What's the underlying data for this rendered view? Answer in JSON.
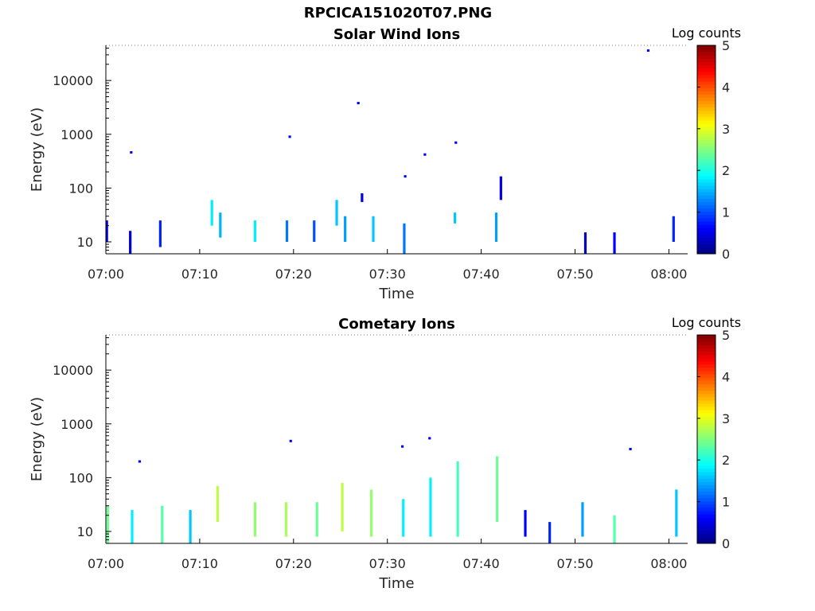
{
  "figure": {
    "title": "RPCICA151020T07.PNG"
  },
  "chart_data": [
    {
      "type": "heatmap",
      "title": "Solar Wind Ions",
      "xlabel": "Time",
      "ylabel": "Energy (eV)",
      "x_ticks": [
        "07:00",
        "07:10",
        "07:20",
        "07:30",
        "07:40",
        "07:50",
        "08:00"
      ],
      "x_tick_minutes": [
        0,
        10,
        20,
        30,
        40,
        50,
        60
      ],
      "xlim_minutes": [
        0,
        62
      ],
      "y_scale": "log",
      "y_ticks": [
        "10",
        "100",
        "1000",
        "10000"
      ],
      "y_tick_values": [
        10,
        100,
        1000,
        10000
      ],
      "ylim": [
        6,
        45000
      ],
      "colorbar": {
        "label": "Log counts",
        "ticks": [
          "0",
          "1",
          "2",
          "3",
          "4",
          "5"
        ],
        "range": [
          0,
          5
        ],
        "colormap": "jet"
      },
      "columns": [
        {
          "t": 0.1,
          "emin": 10,
          "emax": 25,
          "level": 0.5
        },
        {
          "t": 2.6,
          "emin": 6,
          "emax": 16,
          "level": 0.4
        },
        {
          "t": 2.7,
          "emin": 460,
          "emax": 460,
          "level": 0.6
        },
        {
          "t": 5.8,
          "emin": 8,
          "emax": 25,
          "level": 0.8
        },
        {
          "t": 11.3,
          "emin": 20,
          "emax": 60,
          "level": 1.8
        },
        {
          "t": 12.2,
          "emin": 12,
          "emax": 35,
          "level": 1.5
        },
        {
          "t": 15.9,
          "emin": 10,
          "emax": 25,
          "level": 1.8
        },
        {
          "t": 19.3,
          "emin": 10,
          "emax": 25,
          "level": 1.2
        },
        {
          "t": 19.6,
          "emin": 900,
          "emax": 900,
          "level": 0.6
        },
        {
          "t": 22.2,
          "emin": 10,
          "emax": 25,
          "level": 1.0
        },
        {
          "t": 24.6,
          "emin": 20,
          "emax": 60,
          "level": 1.6
        },
        {
          "t": 25.5,
          "emin": 10,
          "emax": 30,
          "level": 1.4
        },
        {
          "t": 26.9,
          "emin": 3800,
          "emax": 3800,
          "level": 0.6
        },
        {
          "t": 27.3,
          "emin": 55,
          "emax": 80,
          "level": 0.5
        },
        {
          "t": 28.5,
          "emin": 10,
          "emax": 30,
          "level": 1.6
        },
        {
          "t": 31.8,
          "emin": 6,
          "emax": 22,
          "level": 1.2
        },
        {
          "t": 31.9,
          "emin": 165,
          "emax": 165,
          "level": 0.6
        },
        {
          "t": 34.0,
          "emin": 420,
          "emax": 420,
          "level": 0.6
        },
        {
          "t": 37.3,
          "emin": 700,
          "emax": 700,
          "level": 0.6
        },
        {
          "t": 37.2,
          "emin": 22,
          "emax": 35,
          "level": 1.6
        },
        {
          "t": 41.6,
          "emin": 10,
          "emax": 35,
          "level": 1.4
        },
        {
          "t": 42.1,
          "emin": 60,
          "emax": 165,
          "level": 0.6
        },
        {
          "t": 51.1,
          "emin": 6,
          "emax": 15,
          "level": 0.3
        },
        {
          "t": 54.2,
          "emin": 6,
          "emax": 15,
          "level": 0.6
        },
        {
          "t": 57.8,
          "emin": 36000,
          "emax": 36000,
          "level": 0.6
        },
        {
          "t": 60.5,
          "emin": 10,
          "emax": 30,
          "level": 0.8
        }
      ]
    },
    {
      "type": "heatmap",
      "title": "Cometary Ions",
      "xlabel": "Time",
      "ylabel": "Energy (eV)",
      "x_ticks": [
        "07:00",
        "07:10",
        "07:20",
        "07:30",
        "07:40",
        "07:50",
        "08:00"
      ],
      "x_tick_minutes": [
        0,
        10,
        20,
        30,
        40,
        50,
        60
      ],
      "xlim_minutes": [
        0,
        62
      ],
      "y_scale": "log",
      "y_ticks": [
        "10",
        "100",
        "1000",
        "10000"
      ],
      "y_tick_values": [
        10,
        100,
        1000,
        10000
      ],
      "ylim": [
        6,
        45000
      ],
      "colorbar": {
        "label": "Log counts",
        "ticks": [
          "0",
          "1",
          "2",
          "3",
          "4",
          "5"
        ],
        "range": [
          0,
          5
        ],
        "colormap": "jet"
      },
      "columns": [
        {
          "t": 0.2,
          "emin": 6,
          "emax": 30,
          "level": 2.4
        },
        {
          "t": 2.8,
          "emin": 6,
          "emax": 25,
          "level": 1.8
        },
        {
          "t": 3.6,
          "emin": 200,
          "emax": 200,
          "level": 0.6
        },
        {
          "t": 6.0,
          "emin": 6,
          "emax": 30,
          "level": 2.3
        },
        {
          "t": 9.0,
          "emin": 6,
          "emax": 25,
          "level": 1.6
        },
        {
          "t": 11.9,
          "emin": 15,
          "emax": 70,
          "level": 2.8
        },
        {
          "t": 15.9,
          "emin": 8,
          "emax": 35,
          "level": 2.6
        },
        {
          "t": 19.2,
          "emin": 8,
          "emax": 35,
          "level": 2.7
        },
        {
          "t": 19.7,
          "emin": 480,
          "emax": 480,
          "level": 0.6
        },
        {
          "t": 22.5,
          "emin": 8,
          "emax": 35,
          "level": 2.4
        },
        {
          "t": 25.2,
          "emin": 10,
          "emax": 80,
          "level": 2.8
        },
        {
          "t": 28.3,
          "emin": 8,
          "emax": 60,
          "level": 2.6
        },
        {
          "t": 31.6,
          "emin": 380,
          "emax": 380,
          "level": 0.6
        },
        {
          "t": 31.7,
          "emin": 8,
          "emax": 40,
          "level": 1.8
        },
        {
          "t": 34.6,
          "emin": 8,
          "emax": 100,
          "level": 1.8
        },
        {
          "t": 34.5,
          "emin": 540,
          "emax": 540,
          "level": 0.6
        },
        {
          "t": 37.5,
          "emin": 8,
          "emax": 200,
          "level": 2.2
        },
        {
          "t": 41.7,
          "emin": 15,
          "emax": 250,
          "level": 2.4
        },
        {
          "t": 44.7,
          "emin": 8,
          "emax": 25,
          "level": 0.6
        },
        {
          "t": 47.3,
          "emin": 6,
          "emax": 15,
          "level": 0.8
        },
        {
          "t": 50.8,
          "emin": 8,
          "emax": 35,
          "level": 1.4
        },
        {
          "t": 54.2,
          "emin": 6,
          "emax": 20,
          "level": 2.3
        },
        {
          "t": 55.9,
          "emin": 340,
          "emax": 340,
          "level": 0.6
        },
        {
          "t": 60.8,
          "emin": 8,
          "emax": 60,
          "level": 1.6
        }
      ]
    }
  ]
}
